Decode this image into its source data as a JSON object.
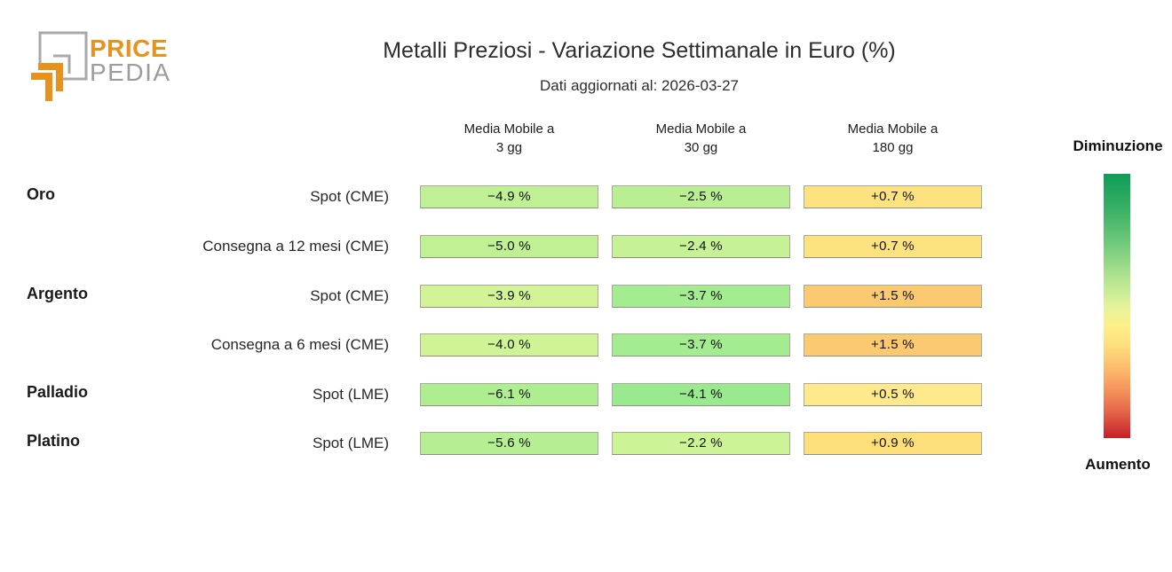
{
  "logo": {
    "word1": "PRICE",
    "word2": "PEDIA",
    "orange": "#E8921E",
    "gray": "#9C9C9C"
  },
  "title": "Metalli Preziosi - Variazione Settimanale in Euro (%)",
  "subtitle": "Dati aggiornati al: 2026-03-27",
  "chart_data": {
    "type": "heatmap",
    "title": "Metalli Preziosi - Variazione Settimanale in Euro (%)",
    "subtitle": "Dati aggiornati al: 2026-03-27",
    "unit": "%",
    "columns": [
      {
        "label": "Media Mobile a 3 gg",
        "line1": "Media Mobile a",
        "line2": "3 gg"
      },
      {
        "label": "Media Mobile a 30 gg",
        "line1": "Media Mobile a",
        "line2": "30 gg"
      },
      {
        "label": "Media Mobile a 180 gg",
        "line1": "Media Mobile a",
        "line2": "180 gg"
      }
    ],
    "rows": [
      {
        "group": "Oro",
        "label": "Spot (CME)",
        "values": [
          -4.9,
          -2.5,
          0.7
        ],
        "display": [
          "−4.9 %",
          "−2.5 %",
          "+0.7 %"
        ],
        "colors": [
          "#c0f094",
          "#b9ef92",
          "#fde37f"
        ]
      },
      {
        "group": "",
        "label": "Consegna a 12 mesi (CME)",
        "values": [
          -5.0,
          -2.4,
          0.7
        ],
        "display": [
          "−5.0 %",
          "−2.4 %",
          "+0.7 %"
        ],
        "colors": [
          "#bff093",
          "#c6f295",
          "#fde37f"
        ]
      },
      {
        "group": "Argento",
        "label": "Spot (CME)",
        "values": [
          -3.9,
          -3.7,
          1.5
        ],
        "display": [
          "−3.9 %",
          "−3.7 %",
          "+1.5 %"
        ],
        "colors": [
          "#d2f496",
          "#a3ec90",
          "#fbca70"
        ]
      },
      {
        "group": "",
        "label": "Consegna a 6 mesi (CME)",
        "values": [
          -4.0,
          -3.7,
          1.5
        ],
        "display": [
          "−4.0 %",
          "−3.7 %",
          "+1.5 %"
        ],
        "colors": [
          "#d0f495",
          "#a3ec90",
          "#fbca70"
        ]
      },
      {
        "group": "Palladio",
        "label": "Spot (LME)",
        "values": [
          -6.1,
          -4.1,
          0.5
        ],
        "display": [
          "−6.1 %",
          "−4.1 %",
          "+0.5 %"
        ],
        "colors": [
          "#aeee91",
          "#99ea8e",
          "#fee98c"
        ]
      },
      {
        "group": "Platino",
        "label": "Spot (LME)",
        "values": [
          -5.6,
          -2.2,
          0.9
        ],
        "display": [
          "−5.6 %",
          "−2.2 %",
          "+0.9 %"
        ],
        "colors": [
          "#b6ef93",
          "#ccf396",
          "#fdde79"
        ]
      }
    ],
    "legend": {
      "decrease_label": "Diminuzione",
      "increase_label": "Aumento",
      "gradient_stops": [
        {
          "pos": 0,
          "color": "#0e9c58"
        },
        {
          "pos": 14,
          "color": "#3bb165"
        },
        {
          "pos": 28,
          "color": "#79cd7f"
        },
        {
          "pos": 40,
          "color": "#b4e591"
        },
        {
          "pos": 50,
          "color": "#e3f39c"
        },
        {
          "pos": 57,
          "color": "#fdf08b"
        },
        {
          "pos": 65,
          "color": "#fede7e"
        },
        {
          "pos": 73,
          "color": "#fdbe6e"
        },
        {
          "pos": 81,
          "color": "#f6985c"
        },
        {
          "pos": 90,
          "color": "#e5664a"
        },
        {
          "pos": 100,
          "color": "#c41f28"
        }
      ]
    }
  }
}
